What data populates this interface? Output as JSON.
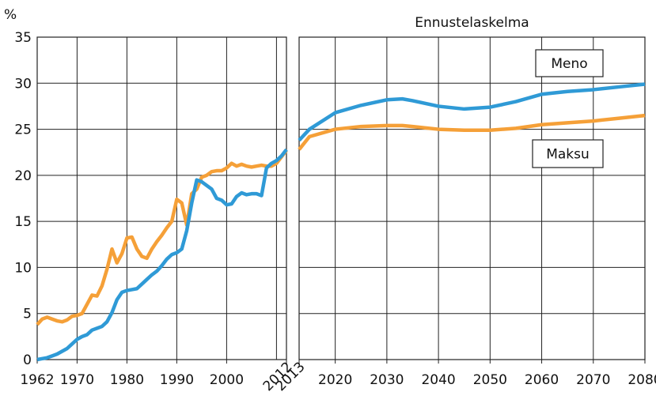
{
  "chart_data": [
    {
      "type": "line",
      "ylabel": "%",
      "x": [
        1962,
        1963,
        1964,
        1965,
        1966,
        1967,
        1968,
        1969,
        1970,
        1971,
        1972,
        1973,
        1974,
        1975,
        1976,
        1977,
        1978,
        1979,
        1980,
        1981,
        1982,
        1983,
        1984,
        1985,
        1986,
        1987,
        1988,
        1989,
        1990,
        1991,
        1992,
        1993,
        1994,
        1995,
        1996,
        1997,
        1998,
        1999,
        2000,
        2001,
        2002,
        2003,
        2004,
        2005,
        2006,
        2007,
        2008,
        2009,
        2010,
        2011,
        2012
      ],
      "series": [
        {
          "color": "#f5a038",
          "values": [
            3.8,
            4.4,
            4.6,
            4.4,
            4.2,
            4.1,
            4.3,
            4.7,
            4.8,
            5.0,
            6.0,
            7.0,
            6.9,
            8.0,
            9.8,
            12.0,
            10.5,
            11.5,
            13.2,
            13.3,
            12.0,
            11.2,
            11.0,
            12.0,
            12.8,
            13.5,
            14.3,
            15.0,
            17.4,
            17.0,
            14.6,
            18.0,
            18.5,
            19.8,
            20.0,
            20.4,
            20.5,
            20.5,
            20.8,
            21.3,
            21.0,
            21.2,
            21.0,
            20.9,
            21.0,
            21.1,
            21.0,
            21.0,
            21.3,
            22.0,
            22.7
          ]
        },
        {
          "color": "#2f9ad6",
          "values": [
            0,
            0.1,
            0.2,
            0.4,
            0.6,
            0.9,
            1.2,
            1.7,
            2.2,
            2.5,
            2.7,
            3.2,
            3.4,
            3.6,
            4.1,
            5.1,
            6.5,
            7.3,
            7.5,
            7.6,
            7.7,
            8.2,
            8.7,
            9.2,
            9.6,
            10.2,
            10.9,
            11.4,
            11.6,
            12.0,
            14.0,
            17.0,
            19.5,
            19.3,
            18.9,
            18.5,
            17.5,
            17.3,
            16.8,
            16.9,
            17.7,
            18.1,
            17.9,
            18.0,
            18.0,
            17.8,
            20.8,
            21.3,
            21.6,
            22.1,
            22.8
          ]
        }
      ],
      "xlim": [
        1962,
        2012
      ],
      "xticks": [
        1962,
        1970,
        1980,
        1990,
        2000,
        2012
      ],
      "xgrid": [
        1970,
        1980,
        1990,
        2000,
        2010
      ],
      "ylim": [
        0,
        35
      ],
      "yticks": [
        0,
        5,
        10,
        15,
        20,
        25,
        30,
        35
      ],
      "grid": true
    },
    {
      "type": "line",
      "title": "Ennustelaskelma",
      "x": [
        2013,
        2015,
        2020,
        2025,
        2030,
        2033,
        2035,
        2040,
        2045,
        2050,
        2055,
        2060,
        2065,
        2070,
        2075,
        2080
      ],
      "series": [
        {
          "name": "Meno",
          "color": "#2f9ad6",
          "values": [
            23.8,
            25.0,
            26.8,
            27.6,
            28.2,
            28.3,
            28.1,
            27.5,
            27.2,
            27.4,
            28.0,
            28.8,
            29.1,
            29.3,
            29.6,
            29.9
          ]
        },
        {
          "name": "Maksu",
          "color": "#f5a038",
          "values": [
            22.8,
            24.2,
            25.0,
            25.3,
            25.4,
            25.4,
            25.3,
            25.0,
            24.9,
            24.9,
            25.1,
            25.5,
            25.7,
            25.9,
            26.2,
            26.5
          ]
        }
      ],
      "xlim": [
        2013,
        2080
      ],
      "xticks": [
        2013,
        2020,
        2030,
        2040,
        2050,
        2060,
        2070,
        2080
      ],
      "xgrid": [
        2020,
        2030,
        2040,
        2050,
        2060,
        2070,
        2080
      ],
      "ylim": [
        0,
        35
      ],
      "yticks": [
        0,
        5,
        10,
        15,
        20,
        25,
        30,
        35
      ],
      "grid": true
    }
  ]
}
